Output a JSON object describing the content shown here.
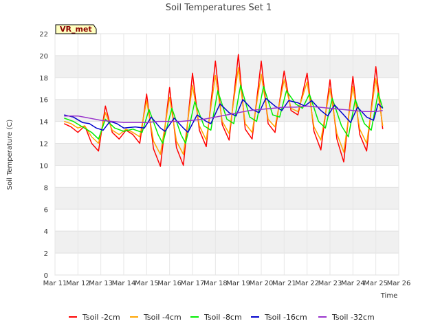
{
  "chart_data": {
    "type": "line",
    "title": "Soil Temperatures Set 1",
    "xlabel": "Time",
    "ylabel": "Soil Temperature (C)",
    "site_label": "VR_met",
    "xlim": [
      11,
      26
    ],
    "ylim": [
      0,
      22
    ],
    "x_ticks": [
      {
        "v": 11,
        "label": "Mar 11"
      },
      {
        "v": 12,
        "label": "Mar 12"
      },
      {
        "v": 13,
        "label": "Mar 13"
      },
      {
        "v": 14,
        "label": "Mar 14"
      },
      {
        "v": 15,
        "label": "Mar 15"
      },
      {
        "v": 16,
        "label": "Mar 16"
      },
      {
        "v": 17,
        "label": "Mar 17"
      },
      {
        "v": 18,
        "label": "Mar 18"
      },
      {
        "v": 19,
        "label": "Mar 19"
      },
      {
        "v": 20,
        "label": "Mar 20"
      },
      {
        "v": 21,
        "label": "Mar 21"
      },
      {
        "v": 22,
        "label": "Mar 22"
      },
      {
        "v": 23,
        "label": "Mar 23"
      },
      {
        "v": 24,
        "label": "Mar 24"
      },
      {
        "v": 25,
        "label": "Mar 25"
      },
      {
        "v": 26,
        "label": "Mar 26"
      }
    ],
    "y_ticks": [
      0,
      2,
      4,
      6,
      8,
      10,
      12,
      14,
      16,
      18,
      20,
      22
    ],
    "grid": true,
    "legend_position": "bottom",
    "series": [
      {
        "name": "Tsoil -2cm",
        "color": "#ff0000",
        "x": [
          11.4,
          11.7,
          12.0,
          12.3,
          12.6,
          12.9,
          13.2,
          13.5,
          13.8,
          14.1,
          14.4,
          14.7,
          15.0,
          15.3,
          15.6,
          16.0,
          16.3,
          16.6,
          17.0,
          17.3,
          17.6,
          18.0,
          18.3,
          18.6,
          19.0,
          19.3,
          19.6,
          20.0,
          20.3,
          20.6,
          21.0,
          21.3,
          21.6,
          22.0,
          22.3,
          22.6,
          23.0,
          23.3,
          23.6,
          24.0,
          24.3,
          24.6,
          25.0,
          25.3
        ],
        "y": [
          13.8,
          13.5,
          13.0,
          13.6,
          12.0,
          11.3,
          15.4,
          13.0,
          12.4,
          13.2,
          12.8,
          12.0,
          16.5,
          11.5,
          9.9,
          17.1,
          11.6,
          10.0,
          18.4,
          13.2,
          11.7,
          19.5,
          13.7,
          12.3,
          20.1,
          13.3,
          12.4,
          19.5,
          13.8,
          13.0,
          18.6,
          15.0,
          14.6,
          18.4,
          13.1,
          11.4,
          17.8,
          12.4,
          10.3,
          18.1,
          12.8,
          11.3,
          19.0,
          13.3
        ]
      },
      {
        "name": "Tsoil -4cm",
        "color": "#ffa500",
        "x": [
          11.4,
          11.7,
          12.0,
          12.3,
          12.6,
          12.9,
          13.2,
          13.5,
          13.8,
          14.1,
          14.4,
          14.7,
          15.0,
          15.3,
          15.6,
          16.0,
          16.3,
          16.6,
          17.0,
          17.3,
          17.6,
          18.0,
          18.3,
          18.6,
          19.0,
          19.3,
          19.6,
          20.0,
          20.3,
          20.6,
          21.0,
          21.3,
          21.6,
          22.0,
          22.3,
          22.6,
          23.0,
          23.3,
          23.6,
          24.0,
          24.3,
          24.6,
          25.0,
          25.3
        ],
        "y": [
          14.0,
          13.8,
          13.4,
          13.6,
          12.6,
          12.0,
          14.8,
          13.2,
          12.8,
          13.3,
          13.0,
          12.6,
          15.9,
          12.2,
          11.0,
          16.2,
          12.2,
          11.0,
          17.3,
          13.6,
          12.3,
          18.2,
          14.0,
          12.9,
          18.9,
          13.8,
          13.0,
          18.3,
          14.2,
          13.5,
          17.8,
          15.2,
          14.9,
          17.6,
          13.5,
          12.3,
          17.0,
          12.9,
          11.2,
          17.2,
          13.3,
          12.0,
          17.9,
          13.6
        ]
      },
      {
        "name": "Tsoil -8cm",
        "color": "#00ee00",
        "x": [
          11.4,
          11.8,
          12.2,
          12.6,
          12.9,
          13.2,
          13.6,
          14.0,
          14.4,
          14.8,
          15.1,
          15.5,
          15.7,
          16.1,
          16.5,
          16.7,
          17.1,
          17.5,
          17.8,
          18.1,
          18.5,
          18.8,
          19.1,
          19.5,
          19.8,
          20.1,
          20.5,
          20.8,
          21.1,
          21.5,
          21.8,
          22.1,
          22.5,
          22.8,
          23.1,
          23.5,
          23.8,
          24.1,
          24.5,
          24.8,
          25.1,
          25.3
        ],
        "y": [
          14.3,
          14.0,
          13.5,
          13.0,
          12.4,
          14.2,
          13.4,
          13.1,
          13.3,
          13.0,
          15.1,
          12.8,
          12.0,
          15.2,
          12.8,
          12.0,
          15.8,
          13.6,
          13.2,
          16.8,
          14.2,
          13.8,
          17.3,
          14.4,
          14.0,
          17.2,
          14.6,
          14.4,
          16.8,
          15.6,
          15.2,
          16.5,
          14.0,
          13.4,
          16.1,
          13.6,
          12.6,
          16.0,
          13.8,
          13.2,
          16.6,
          15.2
        ]
      },
      {
        "name": "Tsoil -16cm",
        "color": "#0000cc",
        "x": [
          11.4,
          11.8,
          12.2,
          12.5,
          12.8,
          13.1,
          13.4,
          13.7,
          14.0,
          14.5,
          14.9,
          15.2,
          15.6,
          15.8,
          16.2,
          16.6,
          16.8,
          17.2,
          17.6,
          17.8,
          18.2,
          18.6,
          18.9,
          19.2,
          19.6,
          19.9,
          20.2,
          20.6,
          20.9,
          21.2,
          21.6,
          21.9,
          22.2,
          22.6,
          22.9,
          23.2,
          23.6,
          23.9,
          24.2,
          24.6,
          24.9,
          25.1,
          25.3
        ],
        "y": [
          14.6,
          14.4,
          13.9,
          13.8,
          13.4,
          13.2,
          14.0,
          13.8,
          13.4,
          13.5,
          13.4,
          14.4,
          13.4,
          13.1,
          14.3,
          13.4,
          13.0,
          14.6,
          14.0,
          13.8,
          15.6,
          14.8,
          14.5,
          16.0,
          15.1,
          14.8,
          16.1,
          15.4,
          15.0,
          15.9,
          15.7,
          15.4,
          15.9,
          15.0,
          14.5,
          15.5,
          14.6,
          13.9,
          15.3,
          14.4,
          14.1,
          15.6,
          15.2
        ]
      },
      {
        "name": "Tsoil -32cm",
        "color": "#9933cc",
        "x": [
          11.4,
          12.0,
          12.5,
          13.0,
          13.5,
          14.0,
          14.5,
          15.0,
          15.5,
          16.0,
          16.5,
          17.0,
          17.5,
          18.0,
          18.5,
          19.0,
          19.5,
          20.0,
          20.5,
          21.0,
          21.5,
          22.0,
          22.5,
          23.0,
          23.5,
          24.0,
          24.5,
          25.0,
          25.3
        ],
        "y": [
          14.5,
          14.5,
          14.3,
          14.1,
          14.0,
          13.9,
          13.9,
          13.9,
          14.0,
          14.0,
          14.0,
          14.1,
          14.2,
          14.4,
          14.6,
          14.8,
          15.0,
          15.1,
          15.2,
          15.3,
          15.3,
          15.4,
          15.3,
          15.2,
          15.1,
          15.0,
          14.9,
          14.9,
          15.0
        ]
      }
    ]
  }
}
